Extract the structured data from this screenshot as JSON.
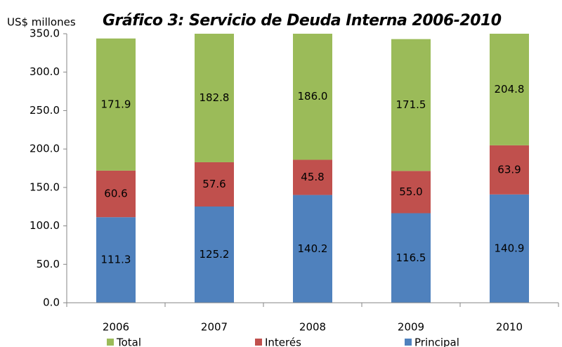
{
  "chart_data": {
    "type": "stacked_bar",
    "title": "Gráfico 3: Servicio de Deuda Interna 2006-2010",
    "y_label": "US$ millones",
    "categories": [
      "2006",
      "2007",
      "2008",
      "2009",
      "2010"
    ],
    "series": [
      {
        "name": "Principal",
        "color": "#4f81bd",
        "values": [
          111.3,
          125.2,
          140.2,
          116.5,
          140.9
        ],
        "value_labels": [
          "111.3",
          "125.2",
          "140.2",
          "116.5",
          "140.9"
        ]
      },
      {
        "name": "Interés",
        "color": "#c0504d",
        "values": [
          60.6,
          57.6,
          45.8,
          55.0,
          63.9
        ],
        "value_labels": [
          "60.6",
          "57.6",
          "45.8",
          "55.0",
          "63.9"
        ]
      },
      {
        "name": "Total",
        "color": "#9bbb59",
        "values": [
          171.9,
          182.8,
          186.0,
          171.5,
          204.8
        ],
        "value_labels": [
          "171.9",
          "182.8",
          "186.0",
          "171.5",
          "204.8"
        ]
      }
    ],
    "ylim": [
      0,
      350
    ],
    "yticks": [
      {
        "value": 0,
        "label": "0.0"
      },
      {
        "value": 50,
        "label": "50.0"
      },
      {
        "value": 100,
        "label": "100.0"
      },
      {
        "value": 150,
        "label": "150.0"
      },
      {
        "value": 200,
        "label": "200.0"
      },
      {
        "value": 250,
        "label": "250.0"
      },
      {
        "value": 300,
        "label": "300.0"
      },
      {
        "value": 350,
        "label": "350.0"
      }
    ],
    "grid": false,
    "legend": "bottom"
  }
}
